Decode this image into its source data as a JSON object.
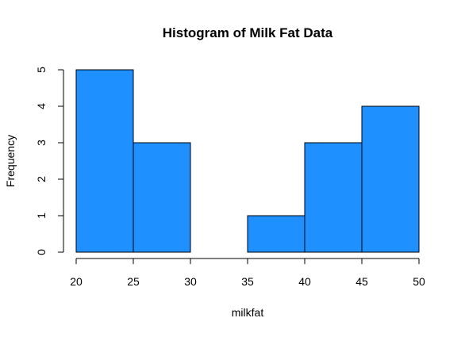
{
  "chart_data": {
    "type": "bar",
    "subtype": "histogram",
    "title": "Histogram of Milk Fat Data",
    "xlabel": "milkfat",
    "ylabel": "Frequency",
    "bins": [
      {
        "from": 20,
        "to": 25,
        "count": 5
      },
      {
        "from": 25,
        "to": 30,
        "count": 3
      },
      {
        "from": 30,
        "to": 35,
        "count": 0
      },
      {
        "from": 35,
        "to": 40,
        "count": 1
      },
      {
        "from": 40,
        "to": 45,
        "count": 3
      },
      {
        "from": 45,
        "to": 50,
        "count": 4
      }
    ],
    "xlim": [
      20,
      50
    ],
    "ylim": [
      0,
      5
    ],
    "x_ticks": [
      "20",
      "25",
      "30",
      "35",
      "40",
      "45",
      "50"
    ],
    "y_ticks": [
      "0",
      "1",
      "2",
      "3",
      "4",
      "5"
    ],
    "bar_color": "#1E90FF",
    "bar_edge_color": "#000000",
    "grid": false,
    "legend": "none"
  }
}
